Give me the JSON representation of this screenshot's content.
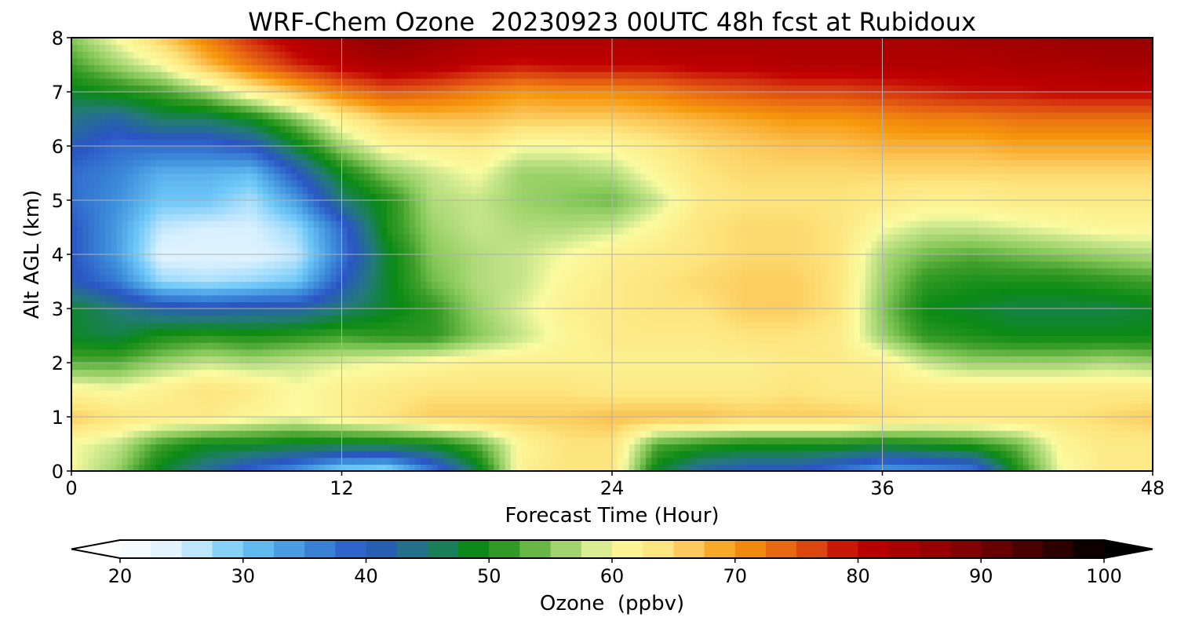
{
  "chart_data": {
    "type": "heatmap",
    "title": "WRF-Chem Ozone  20230923 00UTC 48h fcst at Rubidoux",
    "xlabel": "Forecast Time (Hour)",
    "ylabel": "Alt AGL (km)",
    "xlim": [
      0,
      48
    ],
    "ylim": [
      0,
      8
    ],
    "x_ticks": [
      "0",
      "12",
      "24",
      "36",
      "48"
    ],
    "y_ticks": [
      "0",
      "1",
      "2",
      "3",
      "4",
      "5",
      "6",
      "7",
      "8"
    ],
    "grid": true,
    "x_hours": [
      0,
      2,
      4,
      6,
      8,
      10,
      12,
      14,
      16,
      18,
      20,
      22,
      24,
      26,
      28,
      30,
      32,
      34,
      36,
      38,
      40,
      42,
      44,
      46,
      48
    ],
    "y_km": [
      0,
      0.5,
      1,
      1.5,
      2,
      2.5,
      3,
      3.5,
      4,
      4.5,
      5,
      5.5,
      6,
      6.5,
      7,
      7.5,
      8
    ],
    "ozone_ppbv": [
      [
        60,
        56,
        48,
        43,
        38,
        34,
        28,
        27,
        36,
        47,
        62,
        64,
        64,
        48,
        42,
        40,
        40,
        37,
        33,
        34,
        36,
        50,
        60,
        63,
        63
      ],
      [
        60,
        58,
        52,
        49,
        49,
        48,
        48,
        48,
        49,
        53,
        61,
        64,
        64,
        53,
        51,
        50,
        50,
        50,
        49,
        50,
        51,
        54,
        61,
        63,
        63
      ],
      [
        66,
        64,
        63,
        63,
        61,
        60,
        62,
        64,
        66,
        66,
        66,
        66,
        67,
        67,
        67,
        66,
        66,
        66,
        65,
        64,
        64,
        64,
        64,
        65,
        66
      ],
      [
        61,
        60,
        62,
        64,
        63,
        60,
        62,
        63,
        64,
        64,
        64,
        64,
        63,
        63,
        63,
        63,
        64,
        63,
        63,
        63,
        63,
        63,
        63,
        63,
        63
      ],
      [
        53,
        53,
        56,
        58,
        57,
        58,
        59,
        60,
        61,
        62,
        62,
        62,
        62,
        62,
        62,
        62,
        63,
        63,
        62,
        58,
        56,
        56,
        56,
        57,
        56
      ],
      [
        48,
        47,
        50,
        51,
        50,
        51,
        52,
        51,
        51,
        55,
        58,
        61,
        63,
        63,
        63,
        64,
        64,
        63,
        56,
        51,
        50,
        49,
        49,
        49,
        49
      ],
      [
        48,
        45,
        42,
        41,
        42,
        42,
        45,
        48,
        51,
        56,
        59,
        62,
        63,
        64,
        64,
        66,
        66,
        64,
        55,
        49,
        48,
        47,
        47,
        47,
        48
      ],
      [
        41,
        37,
        28,
        27,
        28,
        30,
        40,
        48,
        54,
        57,
        58,
        61,
        63,
        64,
        65,
        66,
        66,
        64,
        56,
        51,
        50,
        50,
        50,
        51,
        52
      ],
      [
        40,
        34,
        24,
        24,
        24,
        26,
        37,
        48,
        55,
        57,
        58,
        60,
        62,
        63,
        64,
        65,
        65,
        64,
        57,
        54,
        53,
        54,
        55,
        56,
        57
      ],
      [
        40,
        34,
        26,
        25,
        25,
        28,
        38,
        50,
        56,
        58,
        57,
        57,
        58,
        61,
        64,
        65,
        65,
        64,
        60,
        58,
        58,
        59,
        60,
        61,
        61
      ],
      [
        38,
        35,
        30,
        30,
        27,
        34,
        45,
        50,
        57,
        58,
        56,
        55,
        54,
        58,
        63,
        64,
        64,
        64,
        63,
        62,
        62,
        63,
        63,
        63,
        63
      ],
      [
        38,
        36,
        32,
        32,
        31,
        40,
        49,
        55,
        58,
        60,
        56,
        56,
        57,
        61,
        64,
        65,
        65,
        65,
        65,
        65,
        65,
        65,
        65,
        65,
        65
      ],
      [
        41,
        38,
        38,
        38,
        40,
        48,
        56,
        61,
        62,
        63,
        60,
        60,
        61,
        63,
        65,
        66,
        67,
        67,
        68,
        68,
        68,
        69,
        69,
        69,
        69
      ],
      [
        44,
        42,
        46,
        46,
        49,
        55,
        62,
        66,
        67,
        67,
        66,
        66,
        66,
        67,
        68,
        69,
        70,
        70,
        71,
        72,
        72,
        73,
        73,
        73,
        73
      ],
      [
        48,
        50,
        52,
        56,
        62,
        67,
        72,
        75,
        74,
        72,
        70,
        71,
        71,
        72,
        74,
        75,
        76,
        76,
        77,
        78,
        79,
        79,
        80,
        80,
        80
      ],
      [
        52,
        56,
        60,
        67,
        73,
        78,
        81,
        83,
        82,
        80,
        79,
        80,
        80,
        80,
        81,
        81,
        82,
        82,
        82,
        82,
        82,
        83,
        83,
        84,
        84
      ],
      [
        55,
        60,
        66,
        72,
        78,
        82,
        85,
        88,
        86,
        84,
        83,
        83,
        83,
        84,
        84,
        84,
        84,
        84,
        84,
        84,
        85,
        85,
        86,
        86,
        86
      ]
    ]
  },
  "colorbar": {
    "label": "Ozone  (ppbv)",
    "min": 20,
    "max": 100,
    "ticks": [
      "20",
      "30",
      "40",
      "50",
      "60",
      "70",
      "80",
      "90",
      "100"
    ],
    "extend": "both",
    "colors": [
      [
        20,
        "#ffffff"
      ],
      [
        25,
        "#d8f0ff"
      ],
      [
        30,
        "#6cc7f7"
      ],
      [
        35,
        "#3e8fdb"
      ],
      [
        40,
        "#2a55c4"
      ],
      [
        45,
        "#237a78"
      ],
      [
        49,
        "#0a8a14"
      ],
      [
        52,
        "#3e9e2a"
      ],
      [
        55,
        "#86c85a"
      ],
      [
        58,
        "#c6e58a"
      ],
      [
        60,
        "#fbfba0"
      ],
      [
        64,
        "#fde57e"
      ],
      [
        67,
        "#fbc150"
      ],
      [
        70,
        "#f6980c"
      ],
      [
        73,
        "#ec7412"
      ],
      [
        77,
        "#d63a10"
      ],
      [
        80,
        "#c00000"
      ],
      [
        88,
        "#8c0000"
      ],
      [
        95,
        "#3c0000"
      ],
      [
        100,
        "#000000"
      ]
    ]
  }
}
